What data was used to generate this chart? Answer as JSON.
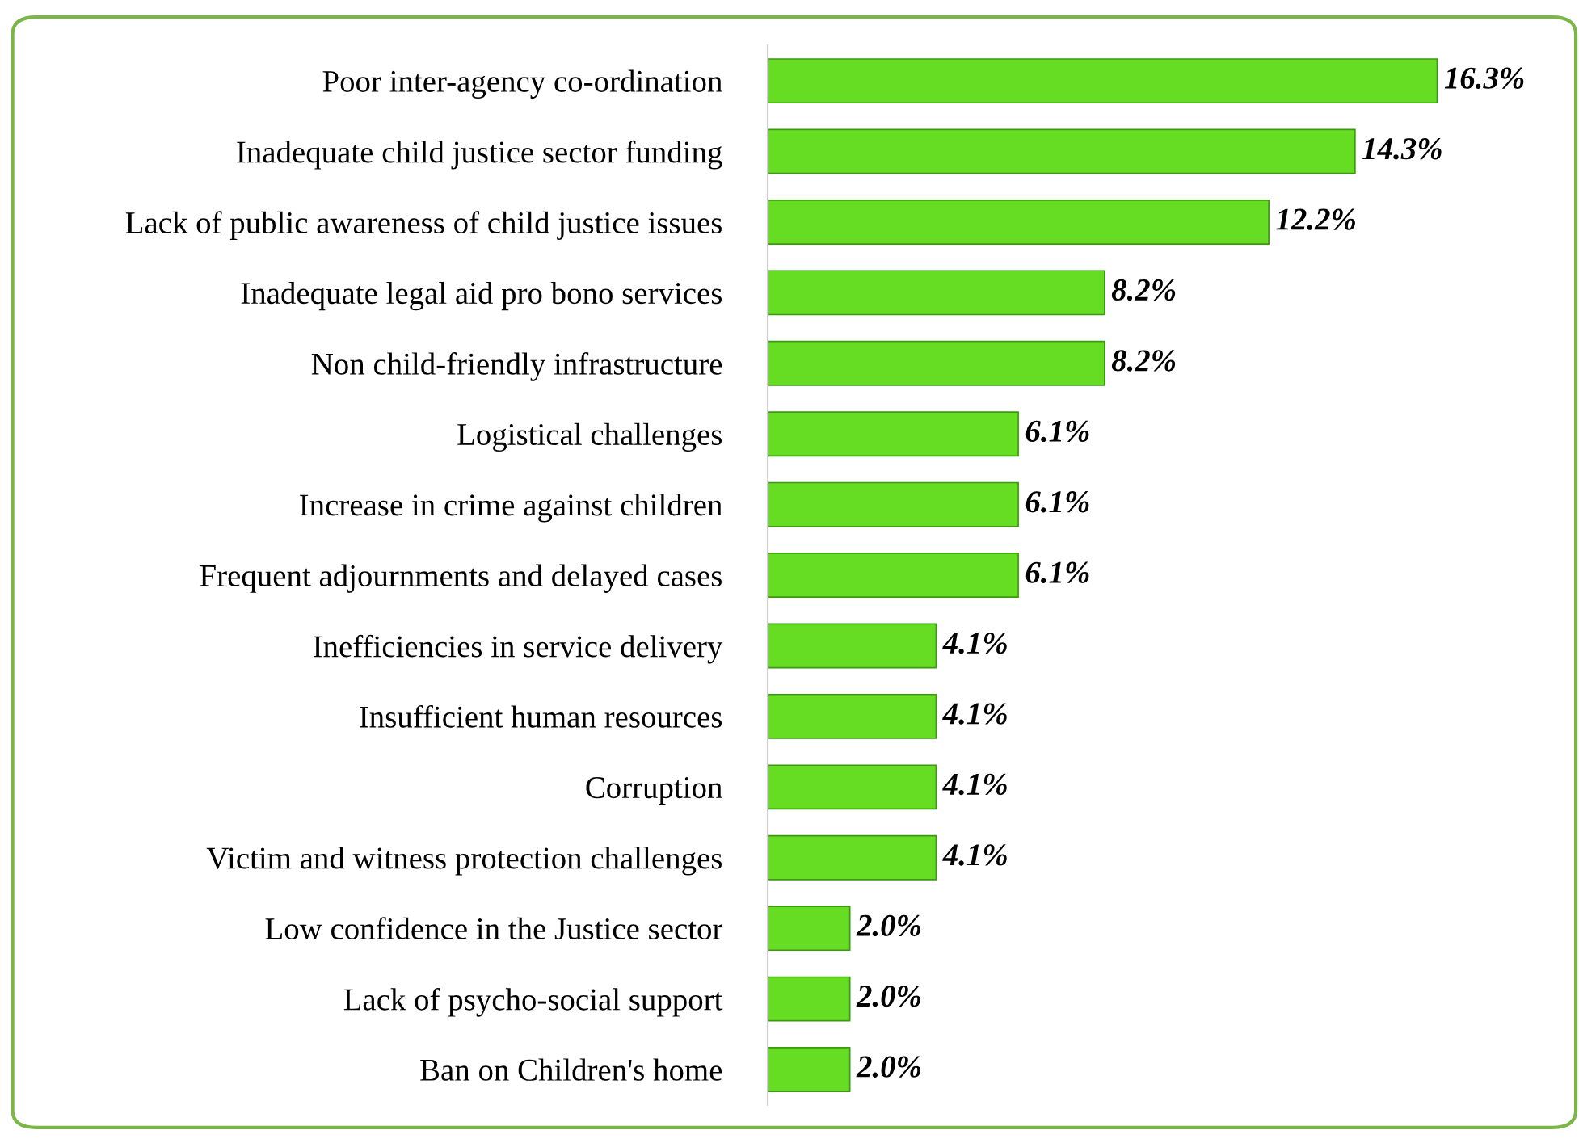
{
  "chart_data": {
    "type": "bar",
    "orientation": "horizontal",
    "categories": [
      "Poor inter-agency co-ordination",
      "Inadequate child justice sector funding",
      "Lack of public awareness of child justice issues",
      "Inadequate legal aid pro bono services",
      "Non child-friendly infrastructure",
      "Logistical challenges",
      "Increase in crime against children",
      "Frequent adjournments and delayed cases",
      "Inefficiencies in service delivery",
      "Insufficient human resources",
      "Corruption",
      "Victim and witness protection challenges",
      "Low confidence in the Justice sector",
      "Lack of psycho-social support",
      "Ban on Children's home"
    ],
    "values": [
      16.3,
      14.3,
      12.2,
      8.2,
      8.2,
      6.1,
      6.1,
      6.1,
      4.1,
      4.1,
      4.1,
      4.1,
      2.0,
      2.0,
      2.0
    ],
    "value_labels": [
      "16.3%",
      "14.3%",
      "12.2%",
      "8.2%",
      "8.2%",
      "6.1%",
      "6.1%",
      "6.1%",
      "4.1%",
      "4.1%",
      "4.1%",
      "4.1%",
      "2.0%",
      "2.0%",
      "2.0%"
    ],
    "color": "#66dd22",
    "grid": false,
    "legend": false
  }
}
